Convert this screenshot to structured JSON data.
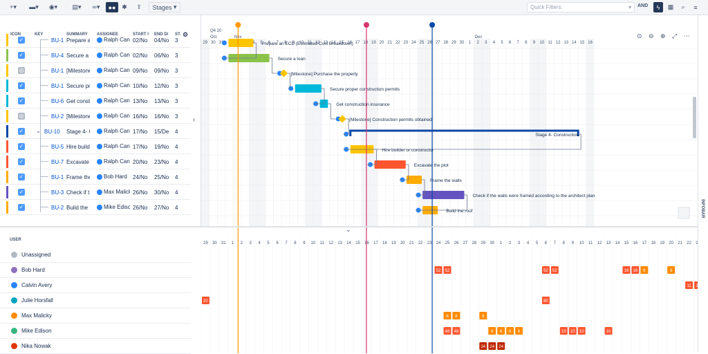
{
  "toolbar": {
    "stages_label": "Stages",
    "quick_filters_placeholder": "Quick Filters:",
    "and_label": "AND"
  },
  "columns": {
    "icon": "ICON",
    "key": "KEY",
    "summary": "SUMMARY",
    "assignee": "ASSIGNEE",
    "start": "START I",
    "end": "END D/",
    "status": "ST."
  },
  "timeline": {
    "quarter": "Q4 20",
    "months": [
      {
        "label": "Oct",
        "col": 0
      },
      {
        "label": "Nov",
        "col": 3
      },
      {
        "label": "Dec",
        "col": 33
      }
    ],
    "days": [
      "29",
      "30",
      "31",
      "1",
      "2",
      "3",
      "4",
      "5",
      "6",
      "7",
      "8",
      "9",
      "10",
      "11",
      "12",
      "13",
      "14",
      "15",
      "16",
      "17",
      "18",
      "19",
      "20",
      "21",
      "22",
      "23",
      "24",
      "25",
      "26",
      "27",
      "28",
      "29",
      "30",
      "1",
      "2",
      "3",
      "4",
      "5",
      "6",
      "7",
      "8",
      "9",
      "10",
      "11",
      "12",
      "13",
      "14",
      "15",
      "16"
    ],
    "bottom_days": [
      "29",
      "30",
      "31",
      "1",
      "2",
      "3",
      "4",
      "5",
      "6",
      "7",
      "8",
      "9",
      "10",
      "11",
      "12",
      "13",
      "14",
      "15",
      "16",
      "17",
      "18",
      "19",
      "20",
      "21",
      "22",
      "23",
      "24",
      "25",
      "26",
      "27",
      "28",
      "29",
      "30",
      "1",
      "2",
      "3",
      "4",
      "5",
      "6",
      "7",
      "8",
      "9",
      "10",
      "11",
      "12",
      "13",
      "14",
      "15",
      "16",
      "17",
      "18",
      "19",
      "20",
      "21",
      "22",
      "23"
    ]
  },
  "rows": [
    {
      "key": "BU-1",
      "summary": "Prepare ar",
      "assignee": "Ralph Cann",
      "start": "02/No",
      "end": "04/No",
      "status": "3",
      "color": "#ffc400",
      "milestone": false,
      "indent": 1,
      "bar_label": "Prepare an ECD (Estimated Cost Breakdown)"
    },
    {
      "key": "BU-4",
      "summary": "Secure a l",
      "assignee": "Ralph Cann",
      "start": "02/No",
      "end": "06/No",
      "status": "3",
      "color": "#8bc34a",
      "milestone": false,
      "indent": 1,
      "bar_label": "Secure a loan"
    },
    {
      "key": "BU-1",
      "summary": "[Milestone",
      "assignee": "Ralph Cann",
      "start": "09/No",
      "end": "09/No",
      "status": "3",
      "color": "#ffc400",
      "milestone": true,
      "indent": 1,
      "bar_label": "[Milestone] Purchase the property"
    },
    {
      "key": "BU-1",
      "summary": "Secure pro",
      "assignee": "Ralph Cann",
      "start": "10/No",
      "end": "12/No",
      "status": "3",
      "color": "#00b8d9",
      "milestone": false,
      "indent": 1,
      "bar_label": "Secure proper construction permits"
    },
    {
      "key": "BU-6",
      "summary": "Get constr",
      "assignee": "Ralph Cann",
      "start": "13/No",
      "end": "13/No",
      "status": "3",
      "color": "#00b8d9",
      "milestone": false,
      "indent": 1,
      "bar_label": "Get construction insurance"
    },
    {
      "key": "BU-2",
      "summary": "[Milestone",
      "assignee": "Ralph Cann",
      "start": "16/No",
      "end": "16/No",
      "status": "3",
      "color": "#ffc400",
      "milestone": true,
      "indent": 1,
      "bar_label": "[Milestone] Construction permits obtained"
    },
    {
      "key": "BU-10",
      "summary": "Stage 4- C",
      "assignee": "Ralph Cann",
      "start": "17/No",
      "end": "15/De",
      "status": "4",
      "color": "#0747a6",
      "milestone": false,
      "indent": 0,
      "bar_label": "Stage 4- Construction"
    },
    {
      "key": "BU-5",
      "summary": "Hire builde",
      "assignee": "Ralph Cann",
      "start": "17/No",
      "end": "19/No",
      "status": "4",
      "color": "#ff5630",
      "milestone": false,
      "indent": 1,
      "bar_label": "Hire builder or constructor"
    },
    {
      "key": "BU-7",
      "summary": "Excavate t",
      "assignee": "Ralph Cann",
      "start": "20/No",
      "end": "23/No",
      "status": "4",
      "color": "#ff5630",
      "milestone": false,
      "indent": 1,
      "bar_label": "Excavate the plot"
    },
    {
      "key": "BU-1",
      "summary": "Frame the",
      "assignee": "Bob Hard",
      "start": "24/No",
      "end": "25/No",
      "status": "4",
      "color": "#ffab00",
      "milestone": false,
      "indent": 1,
      "bar_label": "Frame the walls"
    },
    {
      "key": "BU-3",
      "summary": "Check if th",
      "assignee": "Max Malick",
      "start": "26/No",
      "end": "30/No",
      "status": "4",
      "color": "#6554c0",
      "milestone": false,
      "indent": 1,
      "bar_label": "Check if the walls were framed according to the architect plan"
    },
    {
      "key": "BU-2",
      "summary": "Build the r",
      "assignee": "Mike Ediso",
      "start": "26/No",
      "end": "27/No",
      "status": "4",
      "color": "#ffab00",
      "milestone": false,
      "indent": 1,
      "bar_label": "Build the roof"
    }
  ],
  "bars": [
    {
      "row": 0,
      "c0": 3.4,
      "c1": 6.5,
      "color": "#ffc400",
      "type": "bar"
    },
    {
      "row": 1,
      "c0": 3.4,
      "c1": 8.5,
      "color": "#8bc34a",
      "type": "bar"
    },
    {
      "row": 2,
      "c0": 10.3,
      "c1": 10.3,
      "color": "#ffc400",
      "type": "ms"
    },
    {
      "row": 3,
      "c0": 11.7,
      "c1": 15.0,
      "color": "#00b8d9",
      "type": "bar"
    },
    {
      "row": 4,
      "c0": 14.8,
      "c1": 15.8,
      "color": "#00b8d9",
      "type": "bar"
    },
    {
      "row": 5,
      "c0": 17.6,
      "c1": 17.6,
      "color": "#ffc400",
      "type": "ms"
    },
    {
      "row": 6,
      "c0": 18.6,
      "c1": 47.0,
      "color": "#0747a6",
      "type": "group"
    },
    {
      "row": 7,
      "c0": 18.6,
      "c1": 21.5,
      "color": "#ffc400",
      "type": "bar"
    },
    {
      "row": 8,
      "c0": 21.6,
      "c1": 25.5,
      "color": "#ff5630",
      "type": "bar"
    },
    {
      "row": 9,
      "c0": 25.6,
      "c1": 27.5,
      "color": "#ffab00",
      "type": "bar"
    },
    {
      "row": 10,
      "c0": 27.6,
      "c1": 32.8,
      "color": "#6554c0",
      "type": "bar"
    },
    {
      "row": 11,
      "c0": 27.6,
      "c1": 29.5,
      "color": "#ffab00",
      "type": "bar"
    }
  ],
  "markers": [
    {
      "col": 4.6,
      "color": "#ff9800"
    },
    {
      "col": 20.6,
      "color": "#d6336c"
    },
    {
      "col": 28.8,
      "color": "#0747a6"
    }
  ],
  "users_header": "USER",
  "users": [
    {
      "name": "Unassigned",
      "color": "#b3bac5"
    },
    {
      "name": "Bob Hard",
      "color": "#8e6fbf"
    },
    {
      "name": "Calvin Avery",
      "color": "#2684ff"
    },
    {
      "name": "Julie Horsfall",
      "color": "#00a3bf"
    },
    {
      "name": "Max Malicky",
      "color": "#ff8b00"
    },
    {
      "name": "Mike Edison",
      "color": "#36b37e"
    },
    {
      "name": "Nika Nowak",
      "color": "#de350b"
    }
  ],
  "workload": [
    {
      "user": 1,
      "col": 26,
      "v": "52",
      "color": "#ff5630"
    },
    {
      "user": 1,
      "col": 27,
      "v": "52",
      "color": "#ff5630"
    },
    {
      "user": 1,
      "col": 38,
      "v": "52",
      "color": "#ff5630"
    },
    {
      "user": 1,
      "col": 39,
      "v": "52",
      "color": "#ff5630"
    },
    {
      "user": 1,
      "col": 47,
      "v": "16",
      "color": "#ff5630"
    },
    {
      "user": 1,
      "col": 48,
      "v": "16",
      "color": "#ff5630"
    },
    {
      "user": 1,
      "col": 49,
      "v": "8",
      "color": "#ff8b00"
    },
    {
      "user": 1,
      "col": 52,
      "v": "8",
      "color": "#ff8b00"
    },
    {
      "user": 2,
      "col": 54,
      "v": "11",
      "color": "#ff5630"
    },
    {
      "user": 2,
      "col": 55,
      "v": "11",
      "color": "#ff5630"
    },
    {
      "user": 3,
      "col": 0,
      "v": "20",
      "color": "#ff5630"
    },
    {
      "user": 3,
      "col": 38,
      "v": "80",
      "color": "#ff5630"
    },
    {
      "user": 4,
      "col": 27,
      "v": "8",
      "color": "#ff8b00"
    },
    {
      "user": 4,
      "col": 28,
      "v": "8",
      "color": "#ff8b00"
    },
    {
      "user": 4,
      "col": 31,
      "v": "8",
      "color": "#ff8b00"
    },
    {
      "user": 5,
      "col": 27,
      "v": "48",
      "color": "#ff5630"
    },
    {
      "user": 5,
      "col": 28,
      "v": "48",
      "color": "#ff5630"
    },
    {
      "user": 5,
      "col": 32,
      "v": "6",
      "color": "#ff8b00"
    },
    {
      "user": 5,
      "col": 33,
      "v": "6",
      "color": "#ff8b00"
    },
    {
      "user": 5,
      "col": 34,
      "v": "6",
      "color": "#ff8b00"
    },
    {
      "user": 5,
      "col": 35,
      "v": "6",
      "color": "#ff8b00"
    },
    {
      "user": 5,
      "col": 40,
      "v": "10",
      "color": "#ff5630"
    },
    {
      "user": 5,
      "col": 41,
      "v": "10",
      "color": "#ff5630"
    },
    {
      "user": 5,
      "col": 42,
      "v": "10",
      "color": "#ff5630"
    },
    {
      "user": 5,
      "col": 45,
      "v": "10",
      "color": "#ff5630"
    },
    {
      "user": 6,
      "col": 31,
      "v": "24",
      "color": "#bf2600"
    },
    {
      "user": 6,
      "col": 32,
      "v": "24",
      "color": "#bf2600"
    },
    {
      "user": 6,
      "col": 33,
      "v": "24",
      "color": "#bf2600"
    }
  ],
  "infobar": "INFOBAR"
}
